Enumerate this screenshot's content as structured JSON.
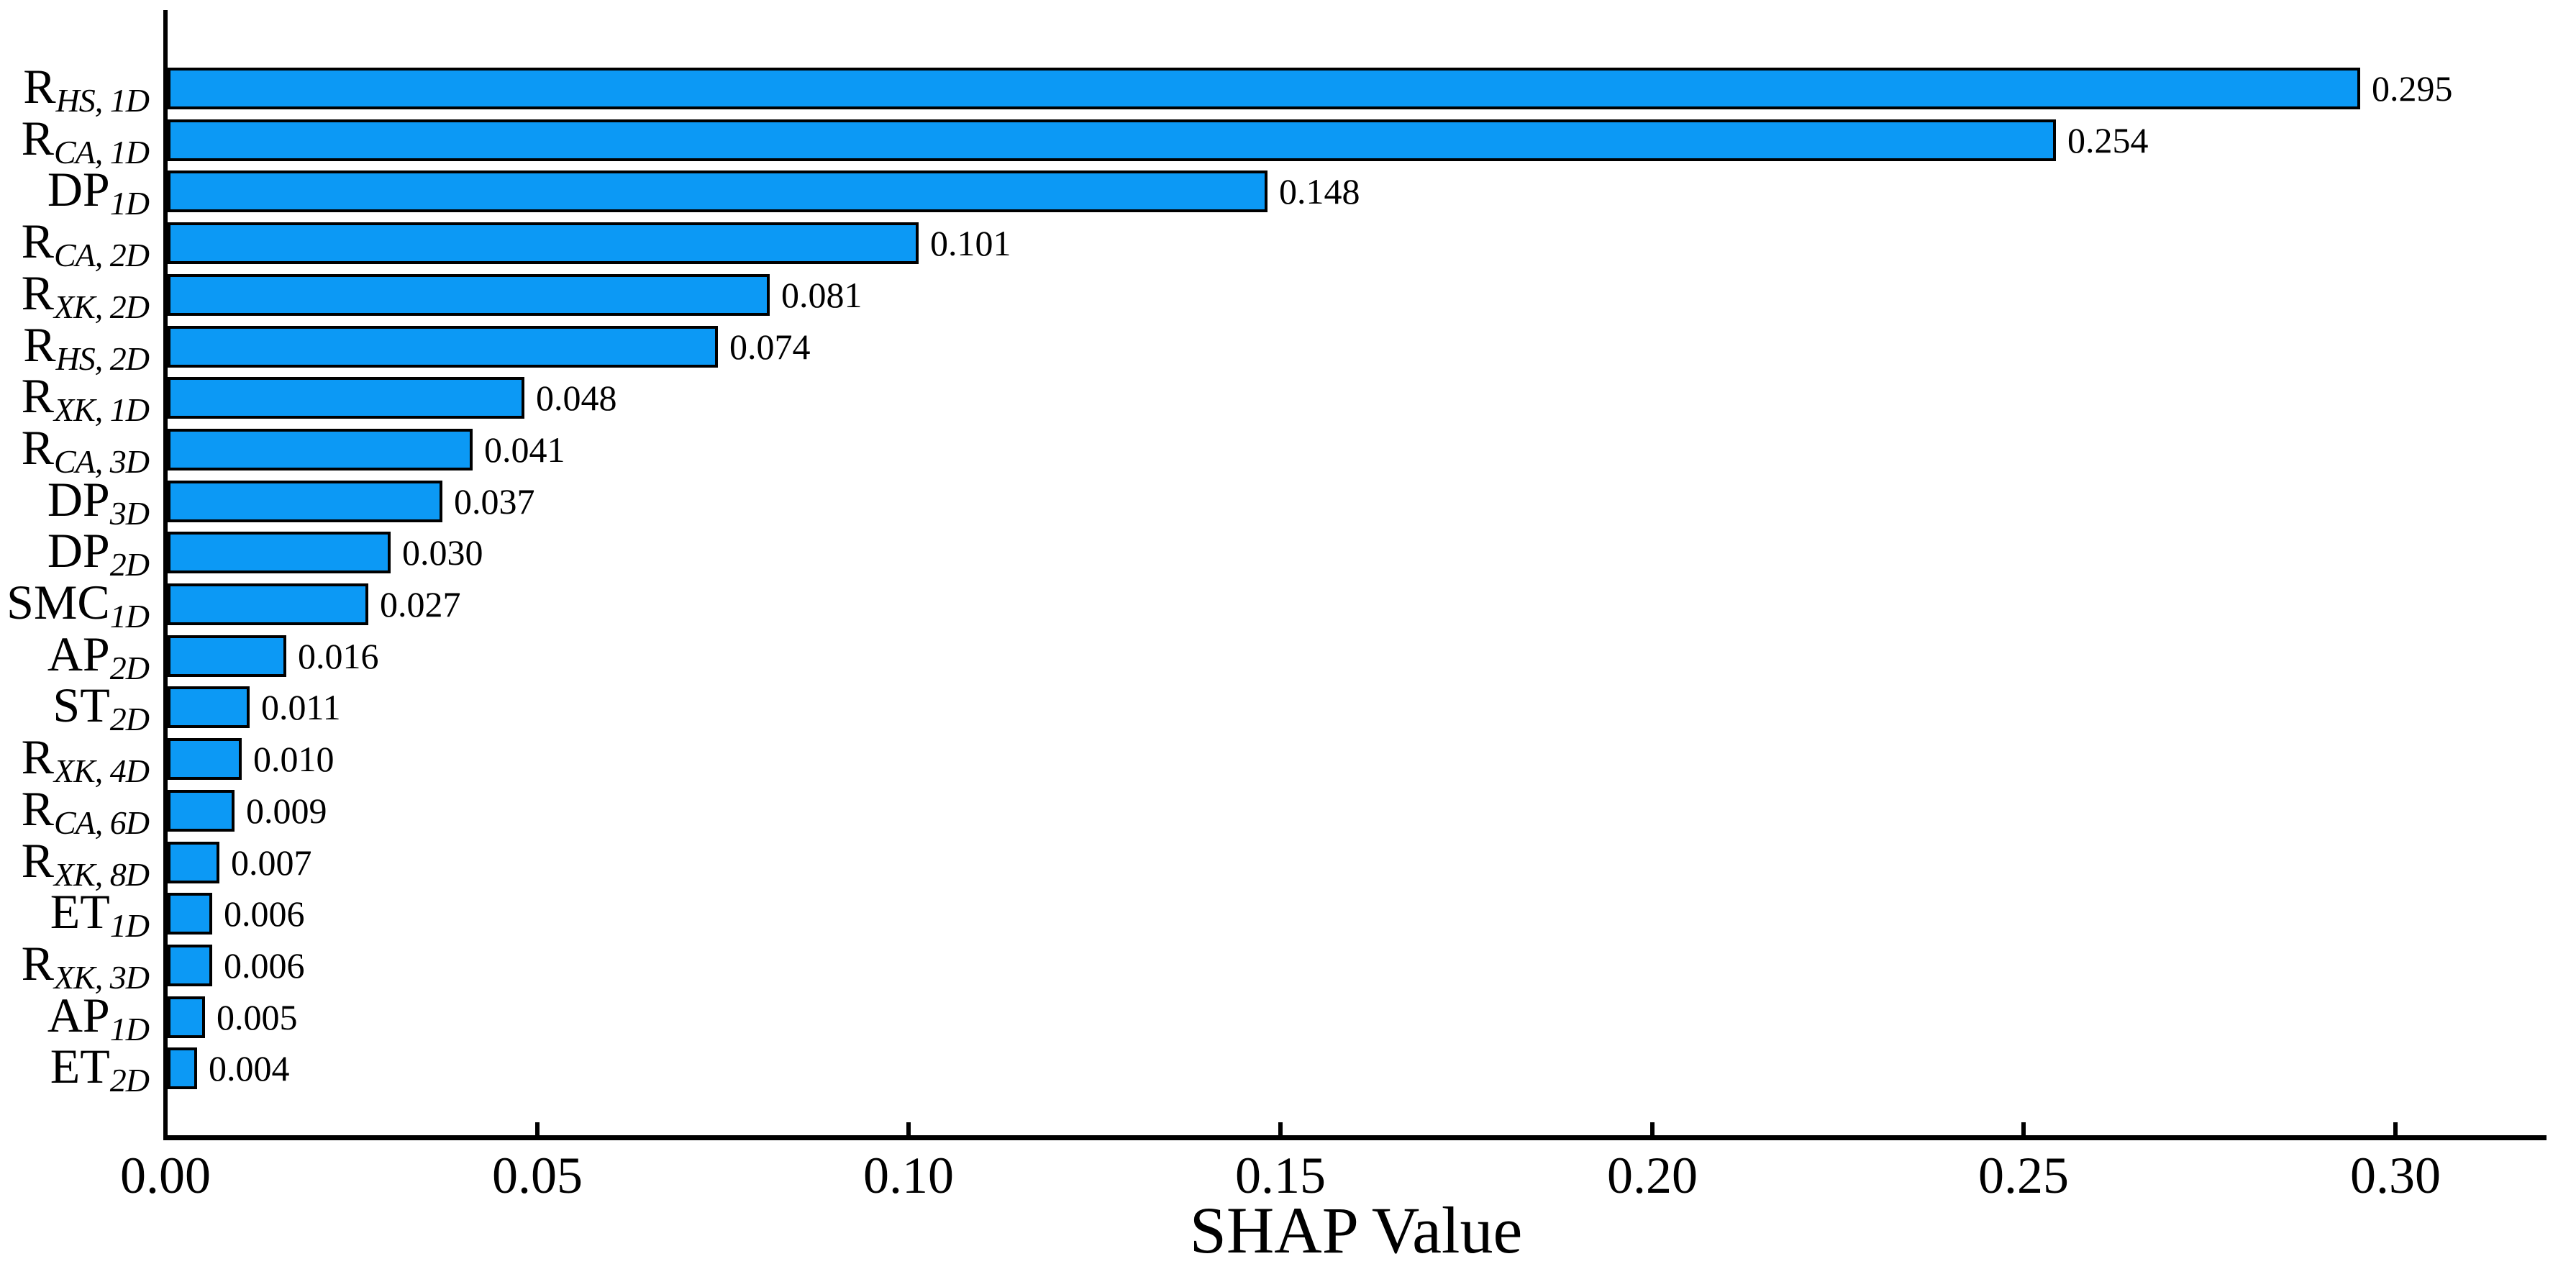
{
  "chart_data": {
    "type": "bar",
    "orientation": "horizontal",
    "title": "",
    "xlabel": "SHAP Value",
    "ylabel": "",
    "xlim": [
      0,
      0.32
    ],
    "x_ticks": [
      0.0,
      0.05,
      0.1,
      0.15,
      0.2,
      0.25,
      0.3
    ],
    "x_tick_labels": [
      "0.00",
      "0.05",
      "0.10",
      "0.15",
      "0.20",
      "0.25",
      "0.30"
    ],
    "grid": false,
    "legend_position": "none",
    "bar_color": "#0C99F5",
    "bar_edge_color": "#000000",
    "background_color": "#FFFFFF",
    "categories": [
      {
        "base": "R",
        "sub": "HS, 1D"
      },
      {
        "base": "R",
        "sub": "CA, 1D"
      },
      {
        "base": "DP",
        "sub": "1D"
      },
      {
        "base": "R",
        "sub": "CA, 2D"
      },
      {
        "base": "R",
        "sub": "XK, 2D"
      },
      {
        "base": "R",
        "sub": "HS, 2D"
      },
      {
        "base": "R",
        "sub": "XK, 1D"
      },
      {
        "base": "R",
        "sub": "CA, 3D"
      },
      {
        "base": "DP",
        "sub": "3D"
      },
      {
        "base": "DP",
        "sub": "2D"
      },
      {
        "base": "SMC",
        "sub": "1D"
      },
      {
        "base": "AP",
        "sub": "2D"
      },
      {
        "base": "ST",
        "sub": "2D"
      },
      {
        "base": "R",
        "sub": "XK, 4D"
      },
      {
        "base": "R",
        "sub": "CA, 6D"
      },
      {
        "base": "R",
        "sub": "XK, 8D"
      },
      {
        "base": "ET",
        "sub": "1D"
      },
      {
        "base": "R",
        "sub": "XK, 3D"
      },
      {
        "base": "AP",
        "sub": "1D"
      },
      {
        "base": "ET",
        "sub": "2D"
      }
    ],
    "values": [
      0.295,
      0.254,
      0.148,
      0.101,
      0.081,
      0.074,
      0.048,
      0.041,
      0.037,
      0.03,
      0.027,
      0.016,
      0.011,
      0.01,
      0.009,
      0.007,
      0.006,
      0.006,
      0.005,
      0.004
    ],
    "value_labels": [
      "0.295",
      "0.254",
      "0.148",
      "0.101",
      "0.081",
      "0.074",
      "0.048",
      "0.041",
      "0.037",
      "0.030",
      "0.027",
      "0.016",
      "0.011",
      "0.010",
      "0.009",
      "0.007",
      "0.006",
      "0.006",
      "0.005",
      "0.004"
    ]
  }
}
